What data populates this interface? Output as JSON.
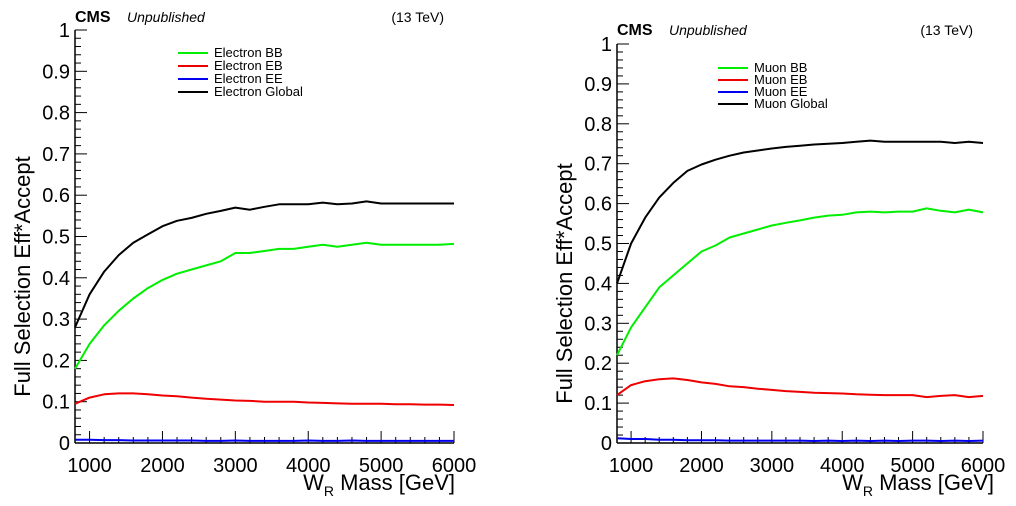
{
  "chart_data": [
    {
      "type": "line",
      "header": {
        "experiment": "CMS",
        "status": "Unpublished",
        "energy": "(13 TeV)"
      },
      "ylabel": "Full Selection Eff*Accept",
      "xlabel_main": "W",
      "xlabel_sub": "R",
      "xlabel_rest": " Mass [GeV]",
      "xlim": [
        800,
        6000
      ],
      "ylim": [
        0,
        1
      ],
      "x_ticks": [
        1000,
        2000,
        3000,
        4000,
        5000,
        6000
      ],
      "y_ticks": [
        "0",
        "0.1",
        "0.2",
        "0.3",
        "0.4",
        "0.5",
        "0.6",
        "0.7",
        "0.8",
        "0.9",
        "1"
      ],
      "legend_position": "top-center",
      "grid": false,
      "x": [
        800,
        1000,
        1200,
        1400,
        1600,
        1800,
        2000,
        2200,
        2400,
        2600,
        2800,
        3000,
        3200,
        3400,
        3600,
        3800,
        4000,
        4200,
        4400,
        4600,
        4800,
        5000,
        5200,
        5400,
        5600,
        5800,
        6000
      ],
      "series": [
        {
          "name": "Electron BB",
          "color": "#00ee00",
          "values": [
            0.18,
            0.24,
            0.285,
            0.32,
            0.35,
            0.375,
            0.395,
            0.41,
            0.42,
            0.43,
            0.44,
            0.46,
            0.46,
            0.465,
            0.47,
            0.47,
            0.475,
            0.48,
            0.475,
            0.48,
            0.485,
            0.48,
            0.48,
            0.48,
            0.48,
            0.48,
            0.482
          ]
        },
        {
          "name": "Electron EB",
          "color": "#ee0000",
          "values": [
            0.095,
            0.11,
            0.118,
            0.12,
            0.12,
            0.118,
            0.115,
            0.113,
            0.11,
            0.107,
            0.105,
            0.103,
            0.102,
            0.1,
            0.1,
            0.1,
            0.098,
            0.097,
            0.096,
            0.095,
            0.095,
            0.095,
            0.094,
            0.094,
            0.093,
            0.093,
            0.092
          ]
        },
        {
          "name": "Electron EE",
          "color": "#0000ee",
          "values": [
            0.008,
            0.008,
            0.007,
            0.007,
            0.006,
            0.006,
            0.006,
            0.006,
            0.006,
            0.005,
            0.005,
            0.006,
            0.005,
            0.005,
            0.005,
            0.005,
            0.006,
            0.005,
            0.005,
            0.006,
            0.005,
            0.005,
            0.005,
            0.005,
            0.005,
            0.005,
            0.005
          ]
        },
        {
          "name": "Electron Global",
          "color": "#000000",
          "values": [
            0.28,
            0.36,
            0.415,
            0.455,
            0.485,
            0.505,
            0.525,
            0.538,
            0.545,
            0.555,
            0.562,
            0.57,
            0.565,
            0.572,
            0.578,
            0.578,
            0.578,
            0.582,
            0.578,
            0.58,
            0.585,
            0.58,
            0.58,
            0.58,
            0.58,
            0.58,
            0.58
          ]
        }
      ]
    },
    {
      "type": "line",
      "header": {
        "experiment": "CMS",
        "status": "Unpublished",
        "energy": "(13 TeV)"
      },
      "ylabel": "Full Selection Eff*Accept",
      "xlabel_main": "W",
      "xlabel_sub": "R",
      "xlabel_rest": " Mass [GeV]",
      "xlim": [
        800,
        6000
      ],
      "ylim": [
        0,
        1
      ],
      "x_ticks": [
        1000,
        2000,
        3000,
        4000,
        5000,
        6000
      ],
      "y_ticks": [
        "0",
        "0.1",
        "0.2",
        "0.3",
        "0.4",
        "0.5",
        "0.6",
        "0.7",
        "0.8",
        "0.9",
        "1"
      ],
      "legend_position": "top-center",
      "grid": false,
      "x": [
        800,
        1000,
        1200,
        1400,
        1600,
        1800,
        2000,
        2200,
        2400,
        2600,
        2800,
        3000,
        3200,
        3400,
        3600,
        3800,
        4000,
        4200,
        4400,
        4600,
        4800,
        5000,
        5200,
        5400,
        5600,
        5800,
        6000
      ],
      "series": [
        {
          "name": "Muon BB",
          "color": "#00ee00",
          "values": [
            0.22,
            0.29,
            0.34,
            0.39,
            0.42,
            0.45,
            0.48,
            0.495,
            0.515,
            0.525,
            0.535,
            0.545,
            0.552,
            0.558,
            0.565,
            0.57,
            0.572,
            0.578,
            0.58,
            0.578,
            0.58,
            0.58,
            0.588,
            0.582,
            0.578,
            0.585,
            0.578
          ]
        },
        {
          "name": "Muon EB",
          "color": "#ee0000",
          "values": [
            0.12,
            0.145,
            0.155,
            0.16,
            0.162,
            0.158,
            0.152,
            0.148,
            0.142,
            0.14,
            0.136,
            0.133,
            0.13,
            0.128,
            0.126,
            0.125,
            0.124,
            0.122,
            0.121,
            0.12,
            0.12,
            0.12,
            0.115,
            0.118,
            0.12,
            0.115,
            0.118
          ]
        },
        {
          "name": "Muon EE",
          "color": "#0000ee",
          "values": [
            0.012,
            0.01,
            0.01,
            0.008,
            0.008,
            0.007,
            0.007,
            0.007,
            0.006,
            0.006,
            0.006,
            0.006,
            0.006,
            0.006,
            0.005,
            0.006,
            0.005,
            0.006,
            0.005,
            0.006,
            0.005,
            0.006,
            0.006,
            0.005,
            0.006,
            0.005,
            0.006
          ]
        },
        {
          "name": "Muon Global",
          "color": "#000000",
          "values": [
            0.4,
            0.5,
            0.565,
            0.615,
            0.652,
            0.682,
            0.698,
            0.71,
            0.72,
            0.728,
            0.733,
            0.738,
            0.742,
            0.745,
            0.748,
            0.75,
            0.752,
            0.755,
            0.758,
            0.755,
            0.755,
            0.755,
            0.755,
            0.755,
            0.752,
            0.755,
            0.752
          ]
        }
      ]
    }
  ]
}
